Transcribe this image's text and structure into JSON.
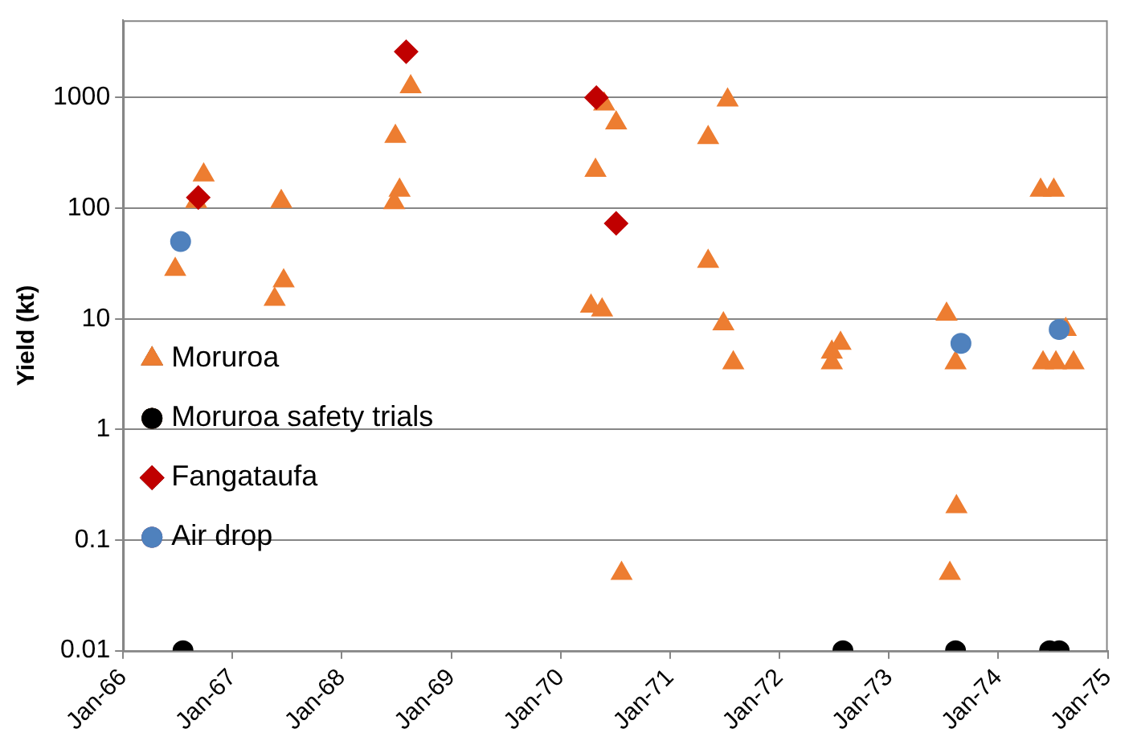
{
  "chart_data": {
    "type": "scatter",
    "ylabel": "Yield (kt)",
    "log": "y",
    "grid": "y",
    "legend": "left",
    "xlim": [
      "1966-01",
      "1975-01"
    ],
    "xticks": [
      {
        "value": "1966-01",
        "label": "Jan-66"
      },
      {
        "value": "1967-01",
        "label": "Jan-67"
      },
      {
        "value": "1968-01",
        "label": "Jan-68"
      },
      {
        "value": "1969-01",
        "label": "Jan-69"
      },
      {
        "value": "1970-01",
        "label": "Jan-70"
      },
      {
        "value": "1971-01",
        "label": "Jan-71"
      },
      {
        "value": "1972-01",
        "label": "Jan-72"
      },
      {
        "value": "1973-01",
        "label": "Jan-73"
      },
      {
        "value": "1974-01",
        "label": "Jan-74"
      },
      {
        "value": "1975-01",
        "label": "Jan-75"
      }
    ],
    "ylim": [
      0.01,
      5000
    ],
    "yticks": [
      0.01,
      0.1,
      1,
      10,
      100,
      1000
    ],
    "series": [
      {
        "name": "Moruroa",
        "color": "#ed7d31",
        "marker": "triangle",
        "x": [
          "1966-06-24",
          "1966-09-02",
          "1966-09-27",
          "1967-05-22",
          "1967-06-13",
          "1967-06-21",
          "1968-06-28",
          "1968-07-12",
          "1968-06-24",
          "1968-08-18",
          "1970-04-27",
          "1970-04-12",
          "1970-05-19",
          "1970-05-26",
          "1970-07-05",
          "1970-07-23",
          "1971-05-08",
          "1971-05-08",
          "1971-07-12",
          "1971-06-28",
          "1971-07-31",
          "1972-06-24",
          "1972-06-24",
          "1972-07-23",
          "1973-07-12",
          "1973-08-11",
          "1973-08-14",
          "1973-07-23",
          "1974-05-22",
          "1974-07-05",
          "1974-05-30",
          "1974-07-12",
          "1974-09-09",
          "1974-08-14"
        ],
        "values": [
          28,
          115,
          200,
          15,
          115,
          22,
          445,
          145,
          112,
          1250,
          220,
          13,
          12,
          875,
          590,
          0.05,
          435,
          33,
          950,
          9,
          4,
          5,
          4,
          6,
          11,
          4,
          0.2,
          0.05,
          145,
          145,
          4,
          4,
          4,
          8
        ]
      },
      {
        "name": "Moruroa safety trials",
        "color": "#000000",
        "marker": "circle",
        "x": [
          "1966-07-20",
          "1972-07-31",
          "1973-08-11",
          "1974-06-21",
          "1974-07-23"
        ],
        "values": [
          0.01,
          0.01,
          0.01,
          0.01,
          0.01
        ]
      },
      {
        "name": "Fangataufa",
        "color": "#c00000",
        "marker": "diamond",
        "x": [
          "1966-09-09",
          "1968-08-03",
          "1970-04-30",
          "1970-07-05"
        ],
        "values": [
          125,
          2600,
          1000,
          73
        ]
      },
      {
        "name": "Air drop",
        "color": "#4f81bd",
        "marker": "circle",
        "x": [
          "1966-07-12",
          "1973-08-29",
          "1974-07-23"
        ],
        "values": [
          50,
          6,
          8
        ]
      }
    ]
  }
}
